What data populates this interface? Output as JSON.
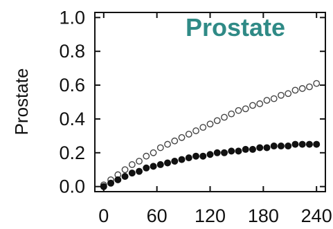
{
  "chart_data": {
    "type": "scatter",
    "title": "Prostate",
    "xlabel": "",
    "ylabel": "Prostate",
    "xlim": [
      -10,
      250
    ],
    "ylim": [
      -0.03,
      1.03
    ],
    "x_ticks": [
      "0",
      "60",
      "120",
      "180",
      "240"
    ],
    "y_ticks": [
      "0.0",
      "0.2",
      "0.4",
      "0.6",
      "0.8",
      "1.0"
    ],
    "grid": false,
    "colors": {
      "title": "#2f8a86",
      "axis": "#111111",
      "filled": "#111111",
      "open_stroke": "#444444"
    },
    "series": [
      {
        "marker": "open-circle",
        "x": [
          0,
          8,
          16,
          24,
          32,
          40,
          48,
          56,
          64,
          72,
          80,
          88,
          96,
          104,
          112,
          120,
          128,
          136,
          144,
          152,
          160,
          168,
          176,
          184,
          192,
          200,
          208,
          216,
          224,
          232,
          240
        ],
        "y": [
          0.01,
          0.04,
          0.07,
          0.1,
          0.13,
          0.15,
          0.18,
          0.2,
          0.23,
          0.25,
          0.27,
          0.29,
          0.31,
          0.33,
          0.35,
          0.37,
          0.39,
          0.41,
          0.43,
          0.45,
          0.46,
          0.48,
          0.49,
          0.51,
          0.52,
          0.54,
          0.55,
          0.57,
          0.58,
          0.59,
          0.61
        ]
      },
      {
        "marker": "filled-circle",
        "x": [
          0,
          8,
          16,
          24,
          32,
          40,
          48,
          56,
          64,
          72,
          80,
          88,
          96,
          104,
          112,
          120,
          128,
          136,
          144,
          152,
          160,
          168,
          176,
          184,
          192,
          200,
          208,
          216,
          224,
          232,
          240
        ],
        "y": [
          0.0,
          0.02,
          0.04,
          0.06,
          0.08,
          0.09,
          0.11,
          0.12,
          0.13,
          0.14,
          0.15,
          0.16,
          0.17,
          0.18,
          0.18,
          0.19,
          0.2,
          0.2,
          0.21,
          0.21,
          0.22,
          0.22,
          0.23,
          0.23,
          0.24,
          0.24,
          0.24,
          0.25,
          0.25,
          0.25,
          0.25
        ]
      }
    ]
  }
}
